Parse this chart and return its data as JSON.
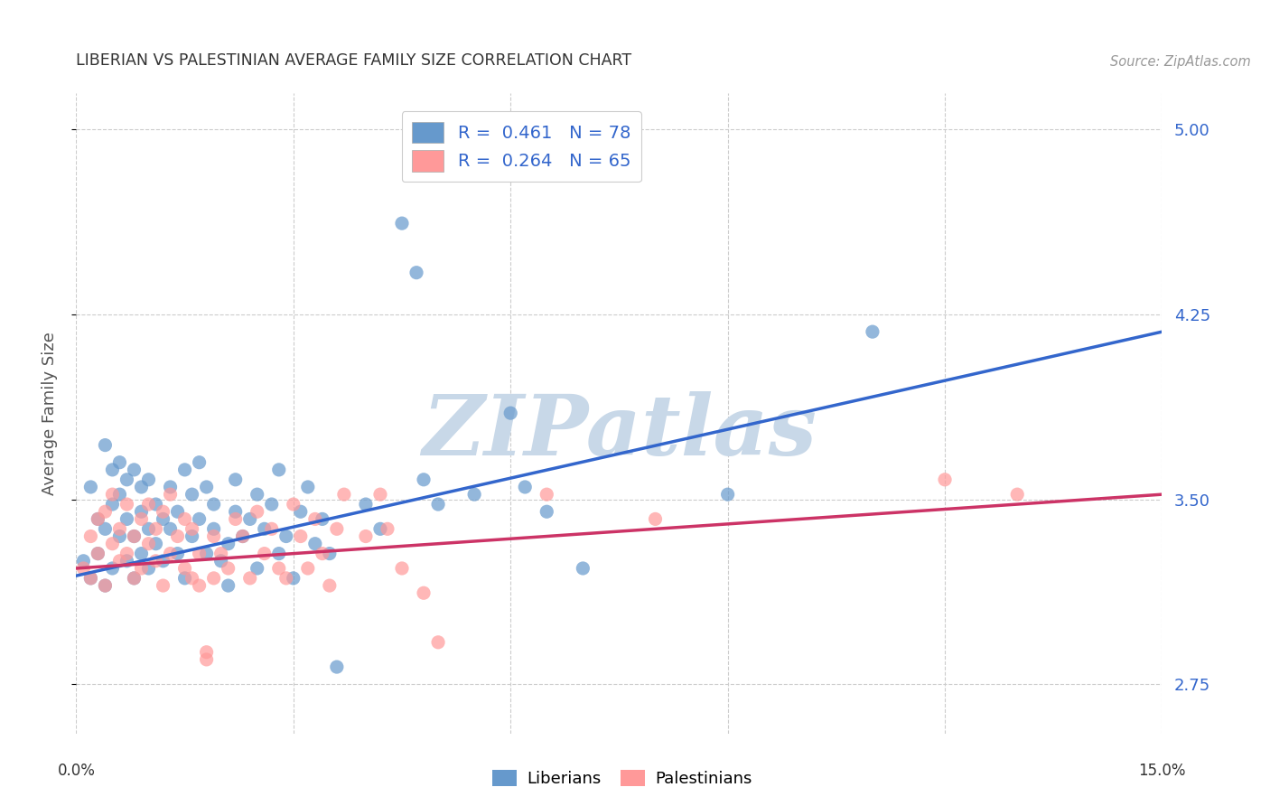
{
  "title": "LIBERIAN VS PALESTINIAN AVERAGE FAMILY SIZE CORRELATION CHART",
  "source": "Source: ZipAtlas.com",
  "ylabel": "Average Family Size",
  "right_yticks": [
    2.75,
    3.5,
    4.25,
    5.0
  ],
  "right_ytick_labels": [
    "2.75",
    "3.50",
    "4.25",
    "5.00"
  ],
  "xlim": [
    0.0,
    0.15
  ],
  "ylim": [
    2.55,
    5.15
  ],
  "watermark": "ZIPatlas",
  "watermark_color": "#c8d8e8",
  "blue_color": "#6699cc",
  "blue_line_color": "#3366cc",
  "pink_color": "#ff9999",
  "pink_line_color": "#cc3366",
  "blue_scatter": [
    [
      0.001,
      3.25
    ],
    [
      0.002,
      3.18
    ],
    [
      0.002,
      3.55
    ],
    [
      0.003,
      3.42
    ],
    [
      0.003,
      3.28
    ],
    [
      0.004,
      3.15
    ],
    [
      0.004,
      3.72
    ],
    [
      0.004,
      3.38
    ],
    [
      0.005,
      3.22
    ],
    [
      0.005,
      3.62
    ],
    [
      0.005,
      3.48
    ],
    [
      0.006,
      3.35
    ],
    [
      0.006,
      3.52
    ],
    [
      0.006,
      3.65
    ],
    [
      0.007,
      3.58
    ],
    [
      0.007,
      3.25
    ],
    [
      0.007,
      3.42
    ],
    [
      0.008,
      3.18
    ],
    [
      0.008,
      3.35
    ],
    [
      0.008,
      3.62
    ],
    [
      0.009,
      3.28
    ],
    [
      0.009,
      3.45
    ],
    [
      0.009,
      3.55
    ],
    [
      0.01,
      3.22
    ],
    [
      0.01,
      3.38
    ],
    [
      0.01,
      3.58
    ],
    [
      0.011,
      3.32
    ],
    [
      0.011,
      3.48
    ],
    [
      0.012,
      3.25
    ],
    [
      0.012,
      3.42
    ],
    [
      0.013,
      3.38
    ],
    [
      0.013,
      3.55
    ],
    [
      0.014,
      3.28
    ],
    [
      0.014,
      3.45
    ],
    [
      0.015,
      3.18
    ],
    [
      0.015,
      3.62
    ],
    [
      0.016,
      3.35
    ],
    [
      0.016,
      3.52
    ],
    [
      0.017,
      3.42
    ],
    [
      0.017,
      3.65
    ],
    [
      0.018,
      3.28
    ],
    [
      0.018,
      3.55
    ],
    [
      0.019,
      3.38
    ],
    [
      0.019,
      3.48
    ],
    [
      0.02,
      3.25
    ],
    [
      0.021,
      3.15
    ],
    [
      0.021,
      3.32
    ],
    [
      0.022,
      3.45
    ],
    [
      0.022,
      3.58
    ],
    [
      0.023,
      3.35
    ],
    [
      0.024,
      3.42
    ],
    [
      0.025,
      3.22
    ],
    [
      0.025,
      3.52
    ],
    [
      0.026,
      3.38
    ],
    [
      0.027,
      3.48
    ],
    [
      0.028,
      3.28
    ],
    [
      0.028,
      3.62
    ],
    [
      0.029,
      3.35
    ],
    [
      0.03,
      3.18
    ],
    [
      0.031,
      3.45
    ],
    [
      0.032,
      3.55
    ],
    [
      0.033,
      3.32
    ],
    [
      0.034,
      3.42
    ],
    [
      0.035,
      3.28
    ],
    [
      0.036,
      2.82
    ],
    [
      0.04,
      3.48
    ],
    [
      0.042,
      3.38
    ],
    [
      0.045,
      4.62
    ],
    [
      0.047,
      4.42
    ],
    [
      0.048,
      3.58
    ],
    [
      0.05,
      3.48
    ],
    [
      0.055,
      3.52
    ],
    [
      0.06,
      3.85
    ],
    [
      0.062,
      3.55
    ],
    [
      0.065,
      3.45
    ],
    [
      0.07,
      3.22
    ],
    [
      0.09,
      3.52
    ],
    [
      0.11,
      4.18
    ]
  ],
  "pink_scatter": [
    [
      0.001,
      3.22
    ],
    [
      0.002,
      3.35
    ],
    [
      0.002,
      3.18
    ],
    [
      0.003,
      3.42
    ],
    [
      0.003,
      3.28
    ],
    [
      0.004,
      3.15
    ],
    [
      0.004,
      3.45
    ],
    [
      0.005,
      3.32
    ],
    [
      0.005,
      3.52
    ],
    [
      0.006,
      3.25
    ],
    [
      0.006,
      3.38
    ],
    [
      0.007,
      3.28
    ],
    [
      0.007,
      3.48
    ],
    [
      0.008,
      3.18
    ],
    [
      0.008,
      3.35
    ],
    [
      0.009,
      3.22
    ],
    [
      0.009,
      3.42
    ],
    [
      0.01,
      3.32
    ],
    [
      0.01,
      3.48
    ],
    [
      0.011,
      3.25
    ],
    [
      0.011,
      3.38
    ],
    [
      0.012,
      3.15
    ],
    [
      0.012,
      3.45
    ],
    [
      0.013,
      3.28
    ],
    [
      0.013,
      3.52
    ],
    [
      0.014,
      3.35
    ],
    [
      0.015,
      3.22
    ],
    [
      0.015,
      3.42
    ],
    [
      0.016,
      3.18
    ],
    [
      0.016,
      3.38
    ],
    [
      0.017,
      3.28
    ],
    [
      0.017,
      3.15
    ],
    [
      0.018,
      2.88
    ],
    [
      0.018,
      2.85
    ],
    [
      0.019,
      3.35
    ],
    [
      0.019,
      3.18
    ],
    [
      0.02,
      3.28
    ],
    [
      0.021,
      3.22
    ],
    [
      0.022,
      3.42
    ],
    [
      0.023,
      3.35
    ],
    [
      0.024,
      3.18
    ],
    [
      0.025,
      3.45
    ],
    [
      0.026,
      3.28
    ],
    [
      0.027,
      3.38
    ],
    [
      0.028,
      3.22
    ],
    [
      0.029,
      3.18
    ],
    [
      0.03,
      3.48
    ],
    [
      0.031,
      3.35
    ],
    [
      0.032,
      3.22
    ],
    [
      0.033,
      3.42
    ],
    [
      0.034,
      3.28
    ],
    [
      0.035,
      3.15
    ],
    [
      0.036,
      3.38
    ],
    [
      0.037,
      3.52
    ],
    [
      0.04,
      3.35
    ],
    [
      0.042,
      3.52
    ],
    [
      0.043,
      3.38
    ],
    [
      0.045,
      3.22
    ],
    [
      0.048,
      3.12
    ],
    [
      0.05,
      2.92
    ],
    [
      0.065,
      3.52
    ],
    [
      0.08,
      3.42
    ],
    [
      0.12,
      3.58
    ],
    [
      0.13,
      3.52
    ]
  ],
  "blue_line": [
    [
      0.0,
      3.19
    ],
    [
      0.15,
      4.18
    ]
  ],
  "pink_line": [
    [
      0.0,
      3.22
    ],
    [
      0.15,
      3.52
    ]
  ],
  "background_color": "#ffffff",
  "grid_color": "#cccccc",
  "title_color": "#333333",
  "axis_label_color": "#555555"
}
